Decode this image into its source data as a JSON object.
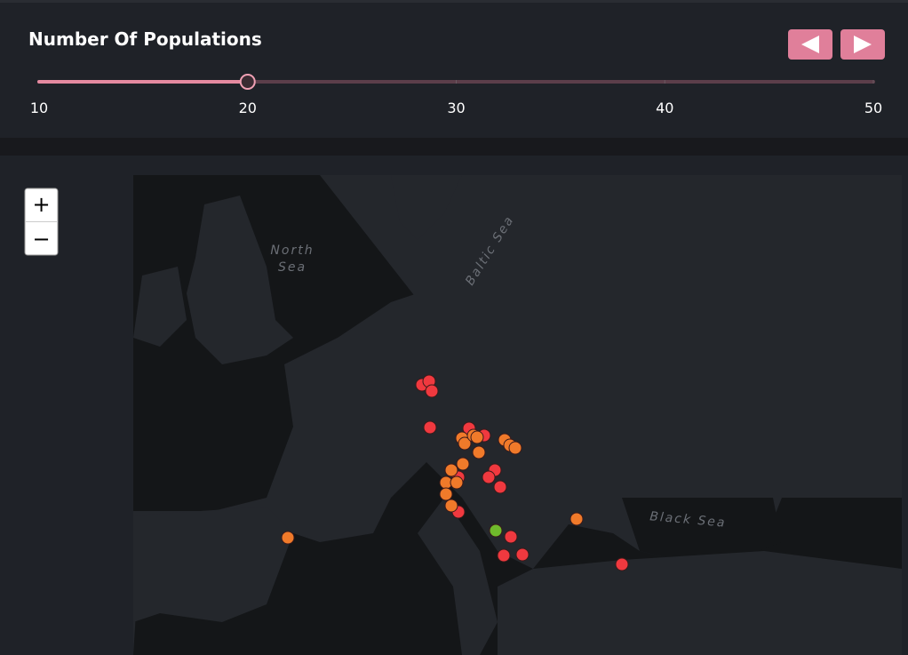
{
  "header": {
    "title": "Number Of Populations"
  },
  "slider": {
    "min": 10,
    "max": 50,
    "value": 20,
    "ticks": [
      10,
      20,
      30,
      40,
      50
    ]
  },
  "controls": {
    "prev": "◀",
    "next": "▶",
    "zoom_in": "+",
    "zoom_out": "−"
  },
  "map_labels": {
    "north_sea": [
      "North",
      "Sea"
    ],
    "baltic_sea": "Baltic Sea",
    "black_sea": "Black Sea"
  }
}
